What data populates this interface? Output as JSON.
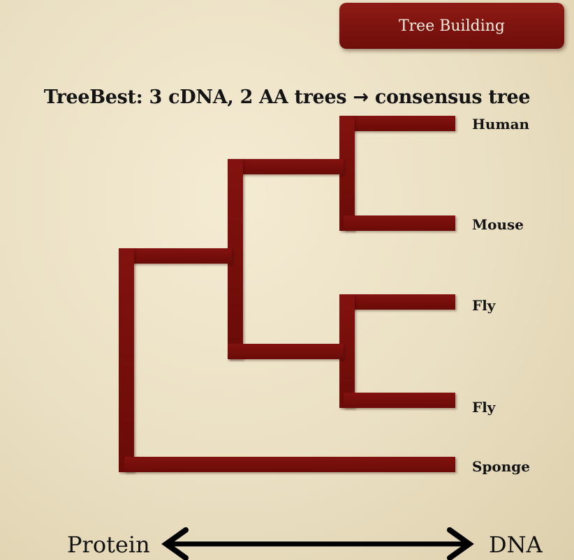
{
  "badge": {
    "label": "Tree Building"
  },
  "heading": {
    "text": "TreeBest: 3 cDNA, 2 AA trees",
    "arrow": "→",
    "suffix": "consensus tree"
  },
  "tree": {
    "leaves": [
      "Human",
      "Mouse",
      "Fly",
      "Fly",
      "Sponge"
    ],
    "color": "#7a100c"
  },
  "axis": {
    "left_label": "Protein",
    "right_label": "DNA"
  }
}
